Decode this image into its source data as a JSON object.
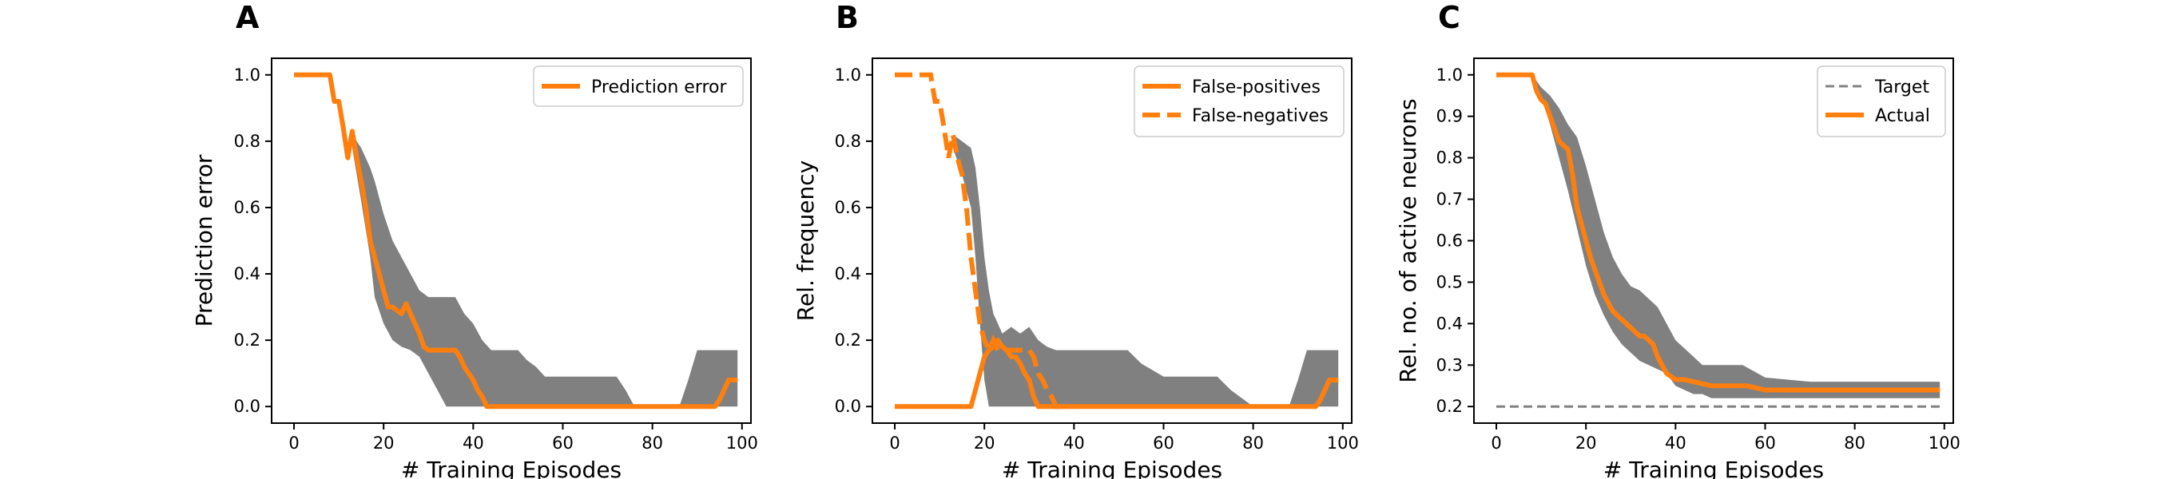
{
  "colors": {
    "line": "#ff7f0e",
    "band": "#808080",
    "target": "#808080"
  },
  "chart_data": [
    {
      "type": "line",
      "panel_label": "A",
      "xlabel": "# Training Episodes",
      "ylabel": "Prediction error",
      "xlim": [
        -5,
        102
      ],
      "ylim": [
        -0.05,
        1.05
      ],
      "xticks": [
        0,
        20,
        40,
        60,
        80,
        100
      ],
      "yticks": [
        0.0,
        0.2,
        0.4,
        0.6,
        0.8,
        1.0
      ],
      "tick_decimals": 1,
      "legend_position": "top-right",
      "band": {
        "x": [
          13,
          15,
          17,
          18,
          20,
          22,
          24,
          26,
          28,
          30,
          32,
          34,
          36,
          38,
          40,
          42,
          44,
          46,
          48,
          50,
          52,
          54,
          56,
          58,
          60,
          62,
          64,
          66,
          68,
          70,
          72,
          74,
          76,
          78,
          80,
          82,
          84,
          86,
          88,
          90,
          92,
          94,
          96,
          98,
          99
        ],
        "upper": [
          0.82,
          0.78,
          0.72,
          0.68,
          0.58,
          0.5,
          0.45,
          0.4,
          0.35,
          0.33,
          0.33,
          0.33,
          0.33,
          0.28,
          0.25,
          0.2,
          0.17,
          0.17,
          0.17,
          0.17,
          0.14,
          0.12,
          0.09,
          0.09,
          0.09,
          0.09,
          0.09,
          0.09,
          0.09,
          0.09,
          0.09,
          0.05,
          0.0,
          0.0,
          0.0,
          0.0,
          0.0,
          0.0,
          0.08,
          0.17,
          0.17,
          0.17,
          0.17,
          0.17,
          0.17
        ],
        "lower": [
          0.78,
          0.62,
          0.45,
          0.33,
          0.25,
          0.2,
          0.18,
          0.17,
          0.15,
          0.1,
          0.05,
          0.0,
          0.0,
          0.0,
          0.0,
          0.0,
          0.0,
          0.0,
          0.0,
          0.0,
          0.0,
          0.0,
          0.0,
          0.0,
          0.0,
          0.0,
          0.0,
          0.0,
          0.0,
          0.0,
          0.0,
          0.0,
          0.0,
          0.0,
          0.0,
          0.0,
          0.0,
          0.0,
          0.0,
          0.0,
          0.0,
          0.0,
          0.0,
          0.0,
          0.0
        ]
      },
      "lines": [
        {
          "name": "Prediction error",
          "style": "solid",
          "x": [
            0,
            1,
            2,
            3,
            4,
            5,
            6,
            7,
            8,
            9,
            10,
            11,
            12,
            13,
            14,
            15,
            16,
            17,
            18,
            19,
            20,
            21,
            22,
            23,
            24,
            25,
            26,
            27,
            28,
            29,
            30,
            31,
            32,
            33,
            34,
            35,
            36,
            37,
            38,
            39,
            40,
            41,
            42,
            43,
            44,
            50,
            60,
            70,
            80,
            90,
            93,
            94,
            95,
            96,
            97,
            98,
            99
          ],
          "y": [
            1.0,
            1.0,
            1.0,
            1.0,
            1.0,
            1.0,
            1.0,
            1.0,
            1.0,
            0.92,
            0.92,
            0.84,
            0.75,
            0.83,
            0.75,
            0.68,
            0.6,
            0.5,
            0.45,
            0.4,
            0.35,
            0.3,
            0.3,
            0.29,
            0.28,
            0.31,
            0.28,
            0.25,
            0.22,
            0.18,
            0.17,
            0.17,
            0.17,
            0.17,
            0.17,
            0.17,
            0.17,
            0.15,
            0.12,
            0.1,
            0.08,
            0.05,
            0.03,
            0.0,
            0.0,
            0.0,
            0.0,
            0.0,
            0.0,
            0.0,
            0.0,
            0.0,
            0.02,
            0.05,
            0.08,
            0.08,
            0.08
          ]
        }
      ]
    },
    {
      "type": "line",
      "panel_label": "B",
      "xlabel": "# Training Episodes",
      "ylabel": "Rel. frequency",
      "xlim": [
        -5,
        102
      ],
      "ylim": [
        -0.05,
        1.05
      ],
      "xticks": [
        0,
        20,
        40,
        60,
        80,
        100
      ],
      "yticks": [
        0.0,
        0.2,
        0.4,
        0.6,
        0.8,
        1.0
      ],
      "tick_decimals": 1,
      "legend_position": "top-right",
      "band": {
        "x": [
          13,
          15,
          17,
          18,
          19,
          20,
          21,
          22,
          24,
          26,
          28,
          30,
          32,
          34,
          36,
          38,
          40,
          45,
          50,
          52,
          55,
          60,
          65,
          70,
          72,
          75,
          80,
          85,
          88,
          90,
          92,
          94,
          96,
          98,
          99
        ],
        "upper": [
          0.82,
          0.8,
          0.78,
          0.72,
          0.6,
          0.45,
          0.35,
          0.28,
          0.22,
          0.24,
          0.22,
          0.24,
          0.2,
          0.18,
          0.17,
          0.17,
          0.17,
          0.17,
          0.17,
          0.17,
          0.13,
          0.09,
          0.09,
          0.09,
          0.09,
          0.05,
          0.0,
          0.0,
          0.0,
          0.08,
          0.17,
          0.17,
          0.17,
          0.17,
          0.17
        ],
        "lower": [
          0.78,
          0.7,
          0.6,
          0.45,
          0.25,
          0.08,
          0.0,
          0.0,
          0.0,
          0.0,
          0.0,
          0.0,
          0.0,
          0.0,
          0.0,
          0.0,
          0.0,
          0.0,
          0.0,
          0.0,
          0.0,
          0.0,
          0.0,
          0.0,
          0.0,
          0.0,
          0.0,
          0.0,
          0.0,
          0.0,
          0.0,
          0.0,
          0.0,
          0.0,
          0.0
        ]
      },
      "lines": [
        {
          "name": "False-positives",
          "style": "solid",
          "x": [
            0,
            5,
            10,
            15,
            16,
            17,
            18,
            19,
            20,
            21,
            22,
            23,
            24,
            25,
            26,
            27,
            28,
            29,
            30,
            31,
            32,
            33,
            40,
            50,
            60,
            70,
            80,
            90,
            94,
            95,
            96,
            97,
            98,
            99
          ],
          "y": [
            0.0,
            0.0,
            0.0,
            0.0,
            0.0,
            0.0,
            0.05,
            0.1,
            0.15,
            0.17,
            0.18,
            0.2,
            0.18,
            0.17,
            0.15,
            0.15,
            0.13,
            0.1,
            0.08,
            0.03,
            0.0,
            0.0,
            0.0,
            0.0,
            0.0,
            0.0,
            0.0,
            0.0,
            0.0,
            0.02,
            0.05,
            0.08,
            0.08,
            0.08
          ]
        },
        {
          "name": "False-negatives",
          "style": "dashed",
          "x": [
            0,
            1,
            2,
            3,
            4,
            5,
            6,
            7,
            8,
            9,
            10,
            11,
            12,
            13,
            14,
            15,
            16,
            17,
            18,
            19,
            20,
            21,
            22,
            23,
            24,
            25,
            26,
            27,
            28,
            29,
            30,
            31,
            32,
            33,
            34,
            35,
            36,
            37
          ],
          "y": [
            1.0,
            1.0,
            1.0,
            1.0,
            1.0,
            1.0,
            1.0,
            1.0,
            1.0,
            0.92,
            0.92,
            0.84,
            0.75,
            0.82,
            0.75,
            0.7,
            0.6,
            0.45,
            0.35,
            0.25,
            0.2,
            0.17,
            0.2,
            0.17,
            0.17,
            0.17,
            0.17,
            0.17,
            0.17,
            0.17,
            0.17,
            0.15,
            0.1,
            0.08,
            0.05,
            0.03,
            0.0,
            0.0
          ]
        }
      ]
    },
    {
      "type": "line",
      "panel_label": "C",
      "xlabel": "# Training Episodes",
      "ylabel": "Rel. no. of active neurons",
      "xlim": [
        -5,
        102
      ],
      "ylim": [
        0.16,
        1.04
      ],
      "xticks": [
        0,
        20,
        40,
        60,
        80,
        100
      ],
      "yticks": [
        0.2,
        0.3,
        0.4,
        0.5,
        0.6,
        0.7,
        0.8,
        0.9,
        1.0
      ],
      "tick_decimals": 1,
      "legend_position": "top-right",
      "band": {
        "x": [
          8,
          10,
          12,
          14,
          16,
          18,
          20,
          22,
          24,
          26,
          28,
          30,
          32,
          34,
          36,
          38,
          40,
          42,
          44,
          46,
          48,
          50,
          55,
          60,
          70,
          80,
          90,
          99
        ],
        "upper": [
          1.0,
          0.97,
          0.95,
          0.92,
          0.88,
          0.85,
          0.78,
          0.7,
          0.62,
          0.56,
          0.52,
          0.49,
          0.48,
          0.46,
          0.44,
          0.4,
          0.36,
          0.34,
          0.32,
          0.3,
          0.3,
          0.3,
          0.3,
          0.27,
          0.26,
          0.26,
          0.26,
          0.26
        ],
        "lower": [
          1.0,
          0.95,
          0.88,
          0.8,
          0.72,
          0.63,
          0.54,
          0.47,
          0.42,
          0.38,
          0.35,
          0.33,
          0.31,
          0.3,
          0.29,
          0.28,
          0.25,
          0.24,
          0.23,
          0.23,
          0.22,
          0.22,
          0.22,
          0.22,
          0.22,
          0.22,
          0.22,
          0.22
        ]
      },
      "lines": [
        {
          "name": "Target",
          "style": "thin-dashed",
          "x": [
            0,
            99
          ],
          "y": [
            0.2,
            0.2
          ]
        },
        {
          "name": "Actual",
          "style": "solid",
          "x": [
            0,
            2,
            4,
            6,
            8,
            9,
            10,
            11,
            12,
            13,
            14,
            15,
            16,
            17,
            18,
            19,
            20,
            21,
            22,
            23,
            24,
            25,
            26,
            27,
            28,
            29,
            30,
            31,
            32,
            33,
            34,
            35,
            36,
            37,
            38,
            40,
            42,
            44,
            46,
            48,
            50,
            52,
            54,
            56,
            58,
            60,
            70,
            80,
            90,
            99
          ],
          "y": [
            1.0,
            1.0,
            1.0,
            1.0,
            1.0,
            0.96,
            0.94,
            0.93,
            0.9,
            0.87,
            0.84,
            0.83,
            0.82,
            0.76,
            0.68,
            0.64,
            0.6,
            0.56,
            0.53,
            0.5,
            0.47,
            0.45,
            0.43,
            0.42,
            0.41,
            0.4,
            0.39,
            0.38,
            0.37,
            0.37,
            0.36,
            0.35,
            0.32,
            0.3,
            0.28,
            0.265,
            0.265,
            0.26,
            0.255,
            0.25,
            0.25,
            0.25,
            0.25,
            0.25,
            0.245,
            0.24,
            0.24,
            0.24,
            0.24,
            0.24
          ]
        }
      ]
    }
  ]
}
